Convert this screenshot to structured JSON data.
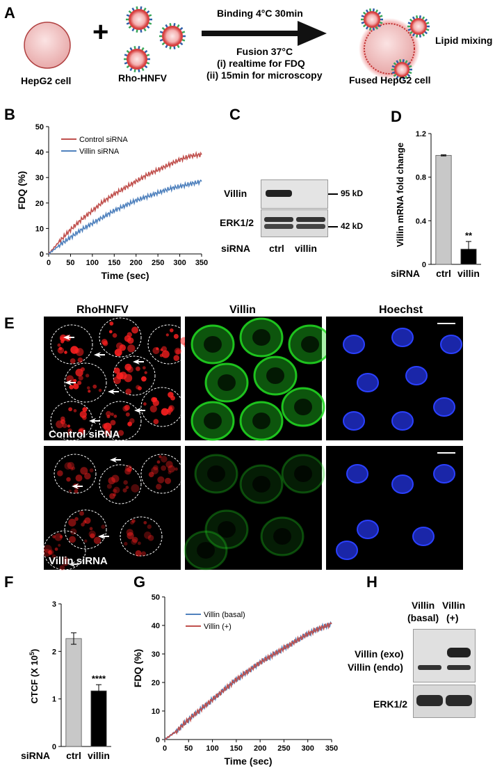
{
  "panelA": {
    "letter": "A",
    "cell_label": "HepG2 cell",
    "plus": "+",
    "vesicle_label": "Rho-HNFV",
    "arrow_top": "Binding 4°C 30min",
    "arrow_bottom": [
      "Fusion 37°C",
      "(i) realtime for FDQ",
      "(ii) 15min for microscopy"
    ],
    "fused_label": "Fused HepG2 cell",
    "lipid_label": "Lipid mixing",
    "colors": {
      "cell": "#f2c9c9",
      "vesicle_core": "#d94040",
      "spike_green": "#3aa65a",
      "spike_blue": "#2f5fa8"
    }
  },
  "panelC": {
    "letter": "C",
    "rows": [
      "Villin",
      "ERK1/2",
      "siRNA"
    ],
    "lanes": [
      "ctrl",
      "villin"
    ],
    "markers": [
      "95 kD",
      "42 kD"
    ]
  },
  "panelE": {
    "letter": "E",
    "columns": [
      "RhoHNFV",
      "Villin",
      "Hoechst"
    ],
    "rows": [
      "Control siRNA",
      "Villin siRNA"
    ],
    "colors": {
      "rho": "#ff2020",
      "villin": "#22dd22",
      "hoechst": "#2a40ff"
    }
  },
  "panelH": {
    "letter": "H",
    "lanes": [
      [
        "Villin",
        "(basal)"
      ],
      [
        "Villin",
        "(+)"
      ]
    ],
    "rows": [
      "Villin (exo)",
      "Villin (endo)",
      "ERK1/2"
    ]
  },
  "chart_data": [
    {
      "panel": "B",
      "type": "line",
      "xlabel": "Time (sec)",
      "ylabel": "FDQ (%)",
      "xlim": [
        0,
        350
      ],
      "ylim": [
        0,
        50
      ],
      "xticks": [
        0,
        50,
        100,
        150,
        200,
        250,
        300,
        350
      ],
      "yticks": [
        0,
        10,
        20,
        30,
        40,
        50
      ],
      "legend_position": "top-left",
      "series": [
        {
          "name": "Control siRNA",
          "color": "#c0504d",
          "x": [
            0,
            25,
            50,
            75,
            100,
            125,
            150,
            175,
            200,
            225,
            250,
            275,
            300,
            325,
            350
          ],
          "y": [
            0,
            5,
            9.5,
            13.5,
            17,
            20.5,
            23.5,
            26,
            28.5,
            31,
            33,
            35,
            37,
            38.5,
            39
          ]
        },
        {
          "name": "Villin siRNA",
          "color": "#4f81bd",
          "x": [
            0,
            25,
            50,
            75,
            100,
            125,
            150,
            175,
            200,
            225,
            250,
            275,
            300,
            325,
            350
          ],
          "y": [
            0,
            3.5,
            6.5,
            9.5,
            12,
            14.5,
            17,
            19,
            21,
            22.5,
            24,
            25.5,
            26.5,
            27.5,
            28.5
          ]
        }
      ]
    },
    {
      "panel": "D",
      "type": "bar",
      "ylabel": "Villin mRNA fold change",
      "group_label": "siRNA",
      "categories": [
        "ctrl",
        "villin"
      ],
      "values": [
        1.0,
        0.14
      ],
      "errors": [
        0.005,
        0.07
      ],
      "ylim": [
        0,
        1.2
      ],
      "yticks": [
        0,
        0.4,
        0.8,
        1.2
      ],
      "annotations": [
        "",
        "**"
      ],
      "colors": [
        "#c8c8c8",
        "#000000"
      ]
    },
    {
      "panel": "F",
      "type": "bar",
      "ylabel": "CTCF (X 10",
      "ylabel_sup": "5",
      "ylabel_end": ")",
      "group_label": "siRNA",
      "categories": [
        "ctrl",
        "villin"
      ],
      "values": [
        2.27,
        1.17
      ],
      "errors": [
        0.12,
        0.13
      ],
      "ylim": [
        0,
        3
      ],
      "yticks": [
        0,
        1,
        2,
        3
      ],
      "annotations": [
        "",
        "****"
      ],
      "colors": [
        "#c8c8c8",
        "#000000"
      ]
    },
    {
      "panel": "G",
      "type": "line",
      "xlabel": "Time (sec)",
      "ylabel": "FDQ (%)",
      "xlim": [
        0,
        350
      ],
      "ylim": [
        0,
        50
      ],
      "xticks": [
        0,
        50,
        100,
        150,
        200,
        250,
        300,
        350
      ],
      "yticks": [
        0,
        10,
        20,
        30,
        40,
        50
      ],
      "legend_position": "top-left",
      "series": [
        {
          "name": "Villin (basal)",
          "color": "#4f81bd",
          "x": [
            0,
            25,
            50,
            75,
            100,
            125,
            150,
            175,
            200,
            225,
            250,
            275,
            300,
            325,
            350
          ],
          "y": [
            0,
            3,
            7,
            10.5,
            14,
            17.5,
            21,
            24,
            27,
            29.5,
            32,
            34.5,
            37,
            39,
            40.5
          ]
        },
        {
          "name": "Villin (+)",
          "color": "#c0504d",
          "x": [
            0,
            25,
            50,
            75,
            100,
            125,
            150,
            175,
            200,
            225,
            250,
            275,
            300,
            325,
            350
          ],
          "y": [
            0,
            3,
            7,
            10.5,
            14,
            17.5,
            21,
            24,
            27,
            29.5,
            32,
            34.5,
            37,
            39,
            40.5
          ]
        }
      ]
    }
  ]
}
